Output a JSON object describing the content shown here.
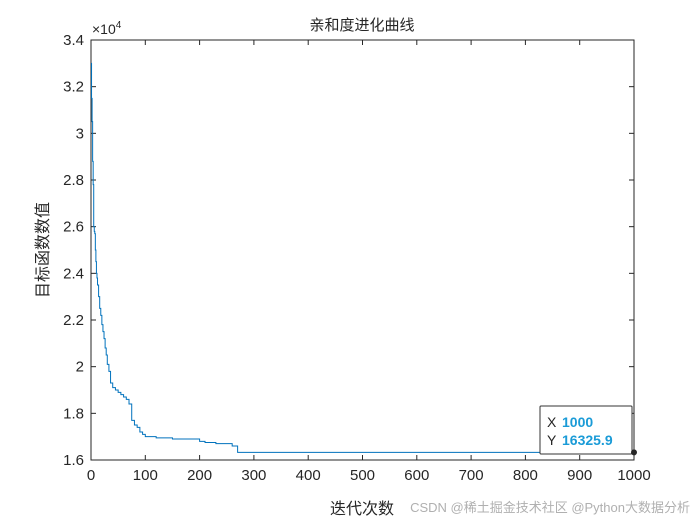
{
  "chart_data": {
    "type": "line",
    "title": "亲和度进化曲线",
    "xlabel": "迭代次数",
    "ylabel": "目标函数数值",
    "xlim": [
      0,
      1000
    ],
    "ylim": [
      16000,
      34000
    ],
    "xticks": [
      0,
      100,
      200,
      300,
      400,
      500,
      600,
      700,
      800,
      900,
      1000
    ],
    "yticks": [
      16000,
      18000,
      20000,
      22000,
      24000,
      26000,
      28000,
      30000,
      32000,
      34000
    ],
    "ytick_labels": [
      "1.6",
      "1.8",
      "2",
      "2.2",
      "2.4",
      "2.6",
      "2.8",
      "3",
      "3.2",
      "3.4"
    ],
    "y_multiplier": "×10",
    "y_exponent": "4",
    "line_color": "#0072bd",
    "grid": false,
    "series": [
      {
        "name": "",
        "x": [
          0,
          1,
          2,
          3,
          4,
          5,
          6,
          7,
          8,
          9,
          10,
          11,
          12,
          14,
          16,
          18,
          20,
          22,
          24,
          26,
          28,
          30,
          33,
          36,
          40,
          45,
          50,
          55,
          60,
          65,
          70,
          75,
          80,
          85,
          90,
          95,
          100,
          110,
          120,
          150,
          200,
          210,
          230,
          260,
          270,
          280,
          300,
          400,
          500,
          600,
          700,
          800,
          900,
          1000
        ],
        "y": [
          33000,
          31500,
          30500,
          28800,
          27800,
          26000,
          25800,
          25700,
          25000,
          24500,
          24000,
          23800,
          23500,
          23000,
          22500,
          22200,
          21800,
          21500,
          21200,
          20800,
          20500,
          20100,
          19800,
          19300,
          19100,
          19000,
          18900,
          18800,
          18700,
          18600,
          18400,
          17700,
          17500,
          17400,
          17200,
          17100,
          17000,
          17000,
          16950,
          16900,
          16800,
          16750,
          16700,
          16600,
          16325.9,
          16325.9,
          16325.9,
          16325.9,
          16325.9,
          16325.9,
          16325.9,
          16325.9,
          16325.9,
          16325.9
        ]
      }
    ],
    "datatip": {
      "x_label": "X",
      "x_value": "1000",
      "y_label": "Y",
      "y_value": "16325.9",
      "x": 1000,
      "y": 16325.9
    }
  },
  "watermark": "CSDN @稀土掘金技术社区 @Python大数据分析"
}
